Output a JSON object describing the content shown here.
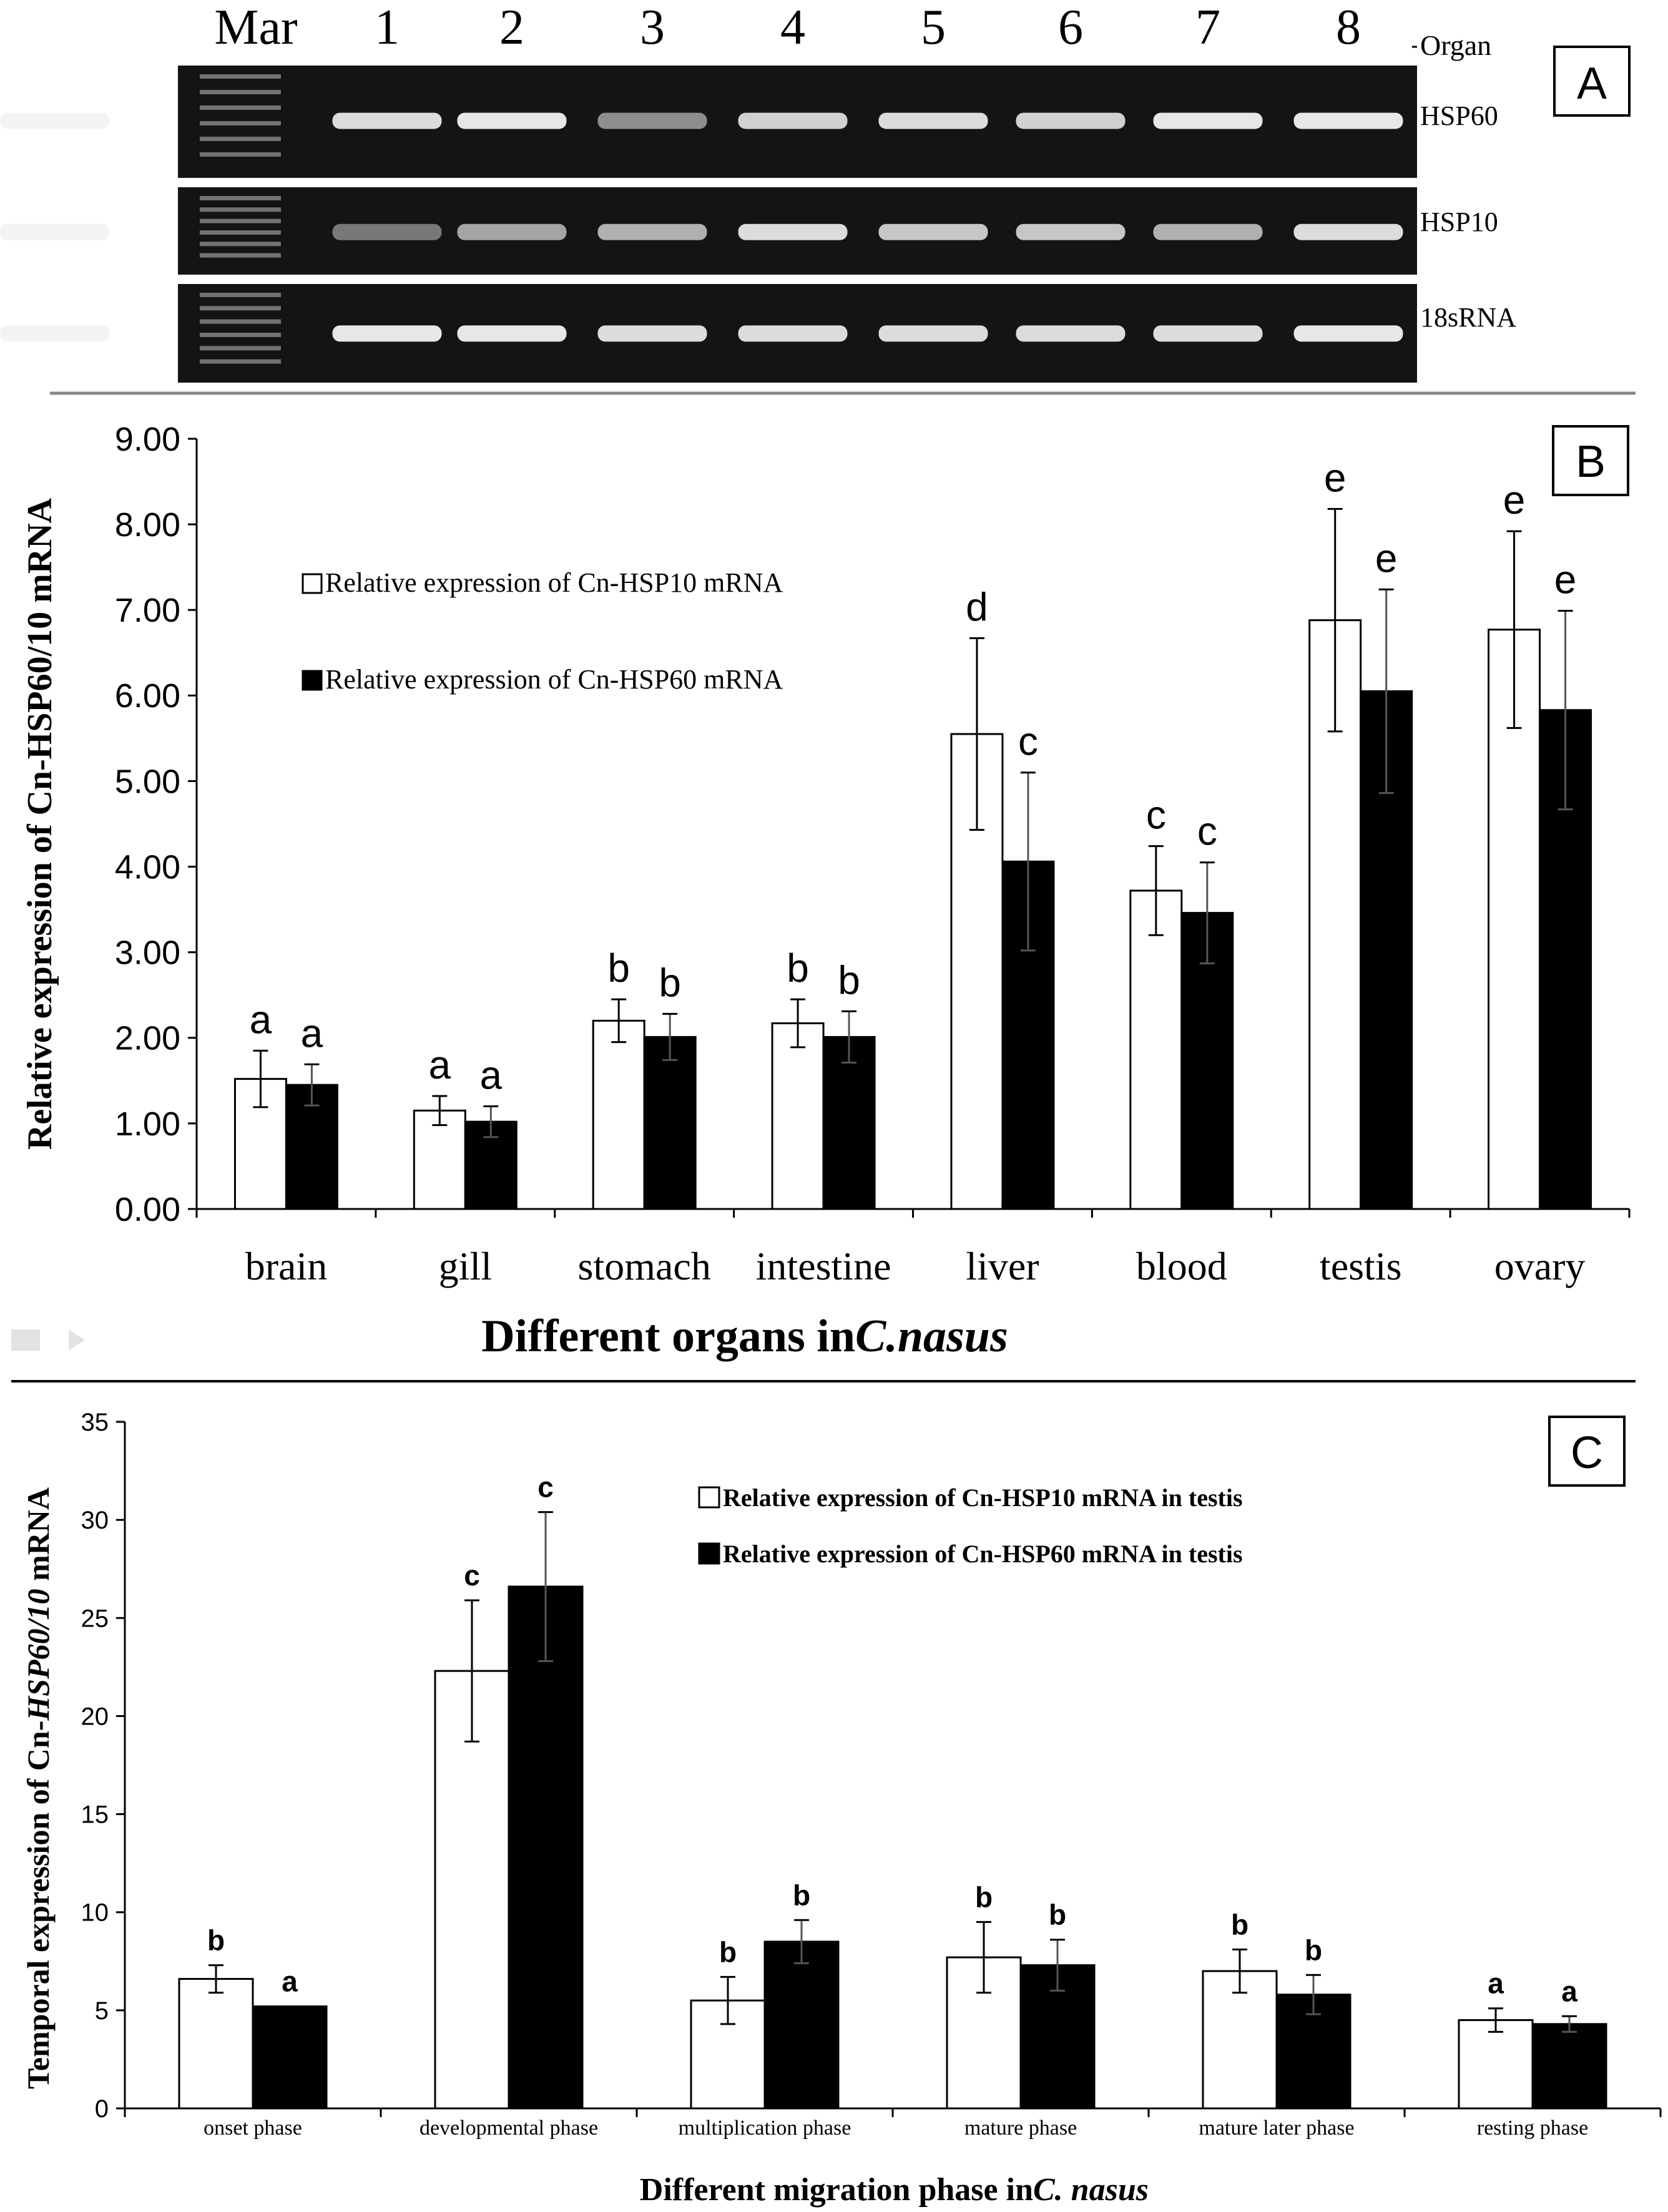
{
  "colors": {
    "ink": "#000000",
    "open_bar": "#ffffff",
    "filled_bar": "#000000",
    "gel_bg": "#141414",
    "band": "#f2f2f2"
  },
  "panelA": {
    "label": "A",
    "lane_labels": [
      "Mar",
      "1",
      "2",
      "3",
      "4",
      "5",
      "6",
      "7",
      "8"
    ],
    "organ_label": "Organ",
    "gels": [
      {
        "name": "HSP60",
        "band_intensity": [
          0.9,
          0.95,
          0.55,
          0.85,
          0.9,
          0.85,
          0.95,
          0.95,
          0.95
        ]
      },
      {
        "name": "HSP10",
        "band_intensity": [
          0.45,
          0.65,
          0.7,
          0.9,
          0.8,
          0.8,
          0.7,
          0.9,
          0.9
        ]
      },
      {
        "name": "18sRNA",
        "band_intensity": [
          0.95,
          0.95,
          0.9,
          0.9,
          0.9,
          0.9,
          0.9,
          0.95,
          0.95
        ]
      }
    ]
  },
  "chart_data": [
    {
      "panel": "B",
      "type": "bar",
      "ylabel": "Relative expression of Cn-HSP60/10 mRNA",
      "xlabel_prefix": "Different organs in ",
      "xlabel_species": "C.nasus",
      "ylim": [
        0,
        9
      ],
      "yticks": [
        "0.00",
        "1.00",
        "2.00",
        "3.00",
        "4.00",
        "5.00",
        "6.00",
        "7.00",
        "8.00",
        "9.00"
      ],
      "categories": [
        "brain",
        "gill",
        "stomach",
        "intestine",
        "liver",
        "blood",
        "testis",
        "ovary"
      ],
      "legend_position": "top-left",
      "series": [
        {
          "name": "Relative expression of Cn-HSP10 mRNA",
          "fill": "open",
          "values": [
            1.52,
            1.15,
            2.2,
            2.17,
            5.55,
            3.72,
            6.88,
            6.77
          ],
          "errors": [
            0.33,
            0.17,
            0.25,
            0.28,
            1.12,
            0.52,
            1.3,
            1.15
          ],
          "letters": [
            "a",
            "a",
            "b",
            "b",
            "d",
            "c",
            "e",
            "e"
          ]
        },
        {
          "name": "Relative expression of Cn-HSP60 mRNA",
          "fill": "solid",
          "values": [
            1.45,
            1.02,
            2.01,
            2.01,
            4.06,
            3.46,
            6.05,
            5.83
          ],
          "errors": [
            0.24,
            0.18,
            0.27,
            0.3,
            1.04,
            0.59,
            1.19,
            1.16
          ],
          "letters": [
            "a",
            "a",
            "b",
            "b",
            "c",
            "c",
            "e",
            "e"
          ]
        }
      ]
    },
    {
      "panel": "C",
      "type": "bar",
      "ylabel_prefix": "Temporal expression of Cn-",
      "ylabel_italic": "HSP60/10",
      "ylabel_suffix": " mRNA",
      "xlabel_prefix": "Different migration phase in ",
      "xlabel_species": "C. nasus",
      "ylim": [
        0,
        35
      ],
      "yticks": [
        "0",
        "5",
        "10",
        "15",
        "20",
        "25",
        "30",
        "35"
      ],
      "categories": [
        "onset phase",
        "developmental phase",
        "multiplication phase",
        "mature phase",
        "mature later phase",
        "resting phase"
      ],
      "legend_position": "top-right",
      "series": [
        {
          "name": "Relative expression of Cn-HSP10 mRNA in testis",
          "fill": "open",
          "values": [
            6.6,
            22.3,
            5.5,
            7.7,
            7.0,
            4.5
          ],
          "errors": [
            0.7,
            3.6,
            1.2,
            1.8,
            1.1,
            0.6
          ],
          "letters": [
            "b",
            "c",
            "b",
            "b",
            "b",
            "a"
          ]
        },
        {
          "name": "Relative expression of Cn-HSP60 mRNA in testis",
          "fill": "solid",
          "values": [
            5.2,
            26.6,
            8.5,
            7.3,
            5.8,
            4.3
          ],
          "errors": [
            0.0,
            3.8,
            1.1,
            1.3,
            1.0,
            0.4
          ],
          "letters": [
            "a",
            "c",
            "b",
            "b",
            "b",
            "a"
          ]
        }
      ]
    }
  ]
}
